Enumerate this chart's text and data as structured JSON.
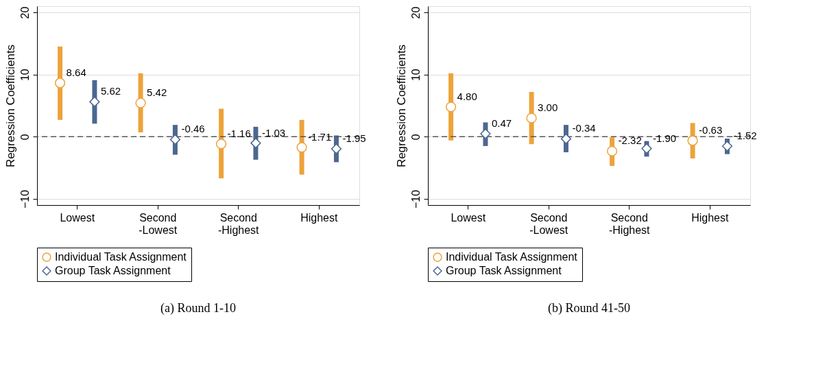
{
  "chart_data": [
    {
      "type": "scatter",
      "ylabel": "Regression Coefficients",
      "categories": [
        "Lowest",
        "Second -Lowest",
        "Second -Highest",
        "Highest"
      ],
      "ylim": [
        -11,
        21
      ],
      "yticks": [
        -10,
        0,
        10,
        20
      ],
      "grid": "y",
      "legend": "bottom",
      "annotations": [
        "(a) Round 1-10"
      ],
      "ref_lines": [
        {
          "axis": "y",
          "value": 0,
          "color": "#555555",
          "line_style": "dashed"
        }
      ],
      "series": [
        {
          "name": "Individual Task Assignment",
          "color": "#eda33b",
          "marker": "circle",
          "values": [
            8.64,
            5.42,
            -1.16,
            -1.71
          ],
          "value_labels": [
            "8.64",
            "5.42",
            "-1.16",
            "-1.71"
          ],
          "errors": [
            [
              2.7,
              14.5
            ],
            [
              0.7,
              10.2
            ],
            [
              -6.7,
              4.5
            ],
            [
              -6.1,
              2.7
            ]
          ]
        },
        {
          "name": "Group Task Assignment",
          "color": "#4c6791",
          "marker": "diamond",
          "values": [
            5.62,
            -0.46,
            -1.03,
            -1.95
          ],
          "value_labels": [
            "5.62",
            "-0.46",
            "-1.03",
            "-1.95"
          ],
          "errors": [
            [
              2.1,
              9.1
            ],
            [
              -2.9,
              1.9
            ],
            [
              -3.7,
              1.6
            ],
            [
              -4.1,
              0.2
            ]
          ]
        }
      ]
    },
    {
      "type": "scatter",
      "ylabel": "Regression Coefficients",
      "categories": [
        "Lowest",
        "Second -Lowest",
        "Second -Highest",
        "Highest"
      ],
      "ylim": [
        -11,
        21
      ],
      "yticks": [
        -10,
        0,
        10,
        20
      ],
      "grid": "y",
      "legend": "bottom",
      "annotations": [
        "(b) Round 41-50"
      ],
      "ref_lines": [
        {
          "axis": "y",
          "value": 0,
          "color": "#555555",
          "line_style": "dashed"
        }
      ],
      "series": [
        {
          "name": "Individual Task Assignment",
          "color": "#eda33b",
          "marker": "circle",
          "values": [
            4.8,
            3.0,
            -2.32,
            -0.63
          ],
          "value_labels": [
            "4.80",
            "3.00",
            "-2.32",
            "-0.63"
          ],
          "errors": [
            [
              -0.6,
              10.2
            ],
            [
              -1.2,
              7.2
            ],
            [
              -4.7,
              -0.1
            ],
            [
              -3.5,
              2.2
            ]
          ]
        },
        {
          "name": "Group Task Assignment",
          "color": "#4c6791",
          "marker": "diamond",
          "values": [
            0.47,
            -0.34,
            -1.9,
            -1.52
          ],
          "value_labels": [
            "0.47",
            "-0.34",
            "-1.90",
            "-1.52"
          ],
          "errors": [
            [
              -1.5,
              2.3
            ],
            [
              -2.5,
              1.9
            ],
            [
              -3.2,
              -0.7
            ],
            [
              -2.8,
              -0.3
            ]
          ]
        }
      ]
    }
  ]
}
